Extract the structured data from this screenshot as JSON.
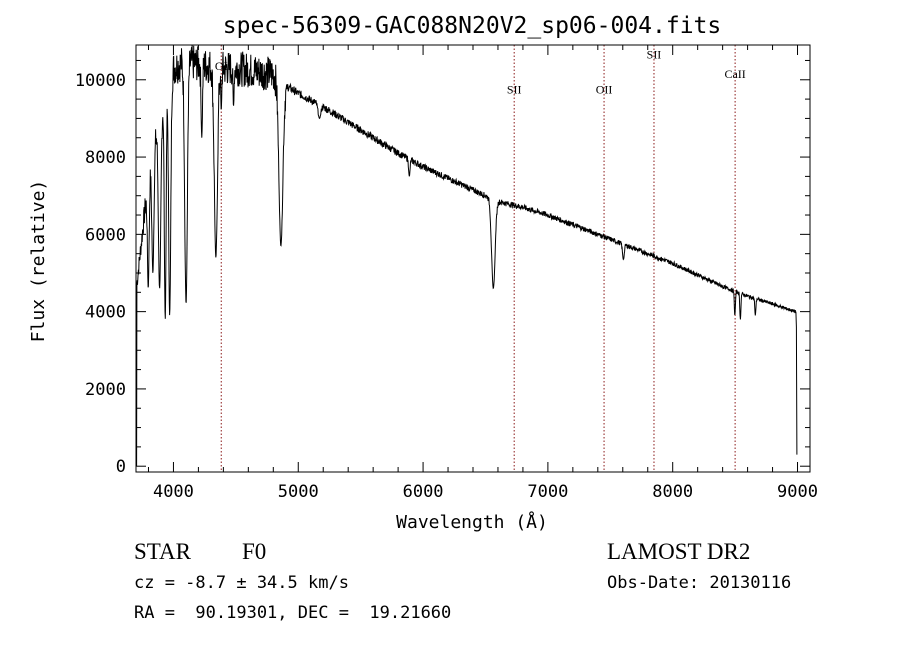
{
  "chart_data": {
    "type": "line",
    "title": "spec-56309-GAC088N20V2_sp06-004.fits",
    "xlabel": "Wavelength (Å)",
    "ylabel": "Flux (relative)",
    "xlim": [
      3700,
      9100
    ],
    "ylim": [
      -150,
      10900
    ],
    "x_ticks": [
      4000,
      5000,
      6000,
      7000,
      8000,
      9000
    ],
    "y_ticks": [
      0,
      2000,
      4000,
      6000,
      8000,
      10000
    ],
    "continuum": [
      [
        3700,
        4500
      ],
      [
        3760,
        6300
      ],
      [
        3800,
        7500
      ],
      [
        3850,
        8400
      ],
      [
        3900,
        9300
      ],
      [
        3950,
        9800
      ],
      [
        4000,
        10300
      ],
      [
        4100,
        10500
      ],
      [
        4200,
        10400
      ],
      [
        4300,
        10350
      ],
      [
        4400,
        10300
      ],
      [
        4500,
        10300
      ],
      [
        4600,
        10250
      ],
      [
        4700,
        10200
      ],
      [
        4800,
        10150
      ],
      [
        4900,
        9850
      ],
      [
        5000,
        9650
      ],
      [
        5200,
        9300
      ],
      [
        5400,
        8900
      ],
      [
        5600,
        8500
      ],
      [
        5800,
        8100
      ],
      [
        6000,
        7750
      ],
      [
        6200,
        7450
      ],
      [
        6400,
        7150
      ],
      [
        6600,
        6850
      ],
      [
        6800,
        6700
      ],
      [
        7000,
        6500
      ],
      [
        7200,
        6250
      ],
      [
        7400,
        6000
      ],
      [
        7600,
        5750
      ],
      [
        7800,
        5500
      ],
      [
        8000,
        5250
      ],
      [
        8200,
        4950
      ],
      [
        8400,
        4650
      ],
      [
        8600,
        4400
      ],
      [
        8800,
        4200
      ],
      [
        8980,
        4000
      ]
    ],
    "absorption_lines": [
      [
        3798,
        4600,
        10
      ],
      [
        3835,
        5000,
        12
      ],
      [
        3889,
        4600,
        14
      ],
      [
        3934,
        3800,
        10
      ],
      [
        3970,
        3900,
        12
      ],
      [
        4101,
        4200,
        15
      ],
      [
        4227,
        8500,
        8
      ],
      [
        4340,
        5400,
        18
      ],
      [
        4383,
        9200,
        6
      ],
      [
        4481,
        9300,
        6
      ],
      [
        4861,
        5700,
        22
      ],
      [
        5170,
        9000,
        15
      ],
      [
        5890,
        7500,
        8
      ],
      [
        6563,
        4600,
        20
      ],
      [
        7605,
        5350,
        10
      ],
      [
        8498,
        3900,
        6
      ],
      [
        8542,
        3800,
        6
      ],
      [
        8662,
        3900,
        6
      ]
    ],
    "ref_lines": [
      {
        "x": 4383,
        "label": "OI",
        "label_y": 10250
      },
      {
        "x": 6730,
        "label": "SII",
        "label_y": 9650
      },
      {
        "x": 7450,
        "label": "OII",
        "label_y": 9650
      },
      {
        "x": 7850,
        "label": "SII",
        "label_y": 10550
      },
      {
        "x": 8500,
        "label": "CaII",
        "label_y": 10050
      }
    ],
    "grid": false,
    "colors": {
      "spectrum": "#000000",
      "ref_line": "#8b1a1a",
      "axes": "#000000"
    }
  },
  "info": {
    "object_class": "STAR",
    "subclass": "F0",
    "survey": "LAMOST DR2",
    "cz": "cz = -8.7 ± 34.5 km/s",
    "obs_date": "Obs-Date: 20130116",
    "coords": "RA =  90.19301, DEC =  19.21660"
  }
}
